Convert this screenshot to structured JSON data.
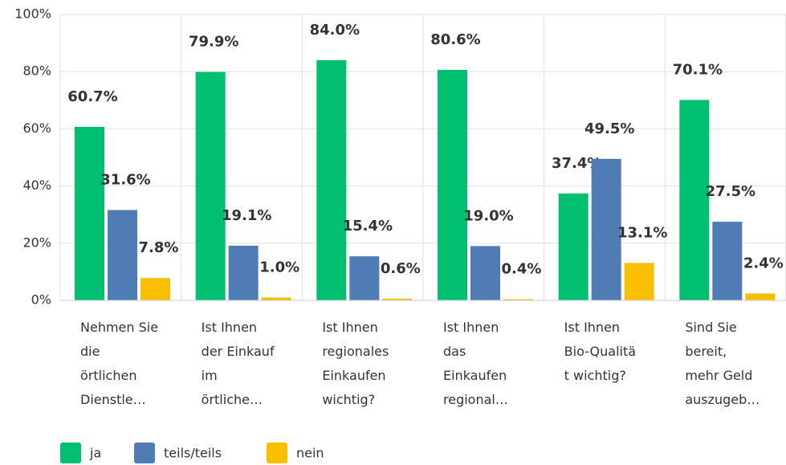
{
  "chart_data": {
    "type": "bar",
    "categories": [
      "Nehmen Sie\ndie\nörtlichen\nDienstle…",
      "Ist Ihnen\nder Einkauf\nim\nörtliche…",
      "Ist Ihnen\nregionales\nEinkaufen\nwichtig?",
      "Ist Ihnen\ndas\nEinkaufen\nregional…",
      "Ist Ihnen\nBio-Qualitä\nt wichtig?",
      "Sind Sie\nbereit,\nmehr Geld\nauszugeb…"
    ],
    "series": [
      {
        "name": "ja",
        "color": "#00bf6f",
        "values": [
          60.7,
          79.9,
          84.0,
          80.6,
          37.4,
          70.1
        ],
        "value_labels": [
          "60.7%",
          "79.9%",
          "84.0%",
          "80.6%",
          "37.4%",
          "70.1%"
        ]
      },
      {
        "name": "teils/teils",
        "color": "#507cb6",
        "values": [
          31.6,
          19.1,
          15.4,
          19.0,
          49.5,
          27.5
        ],
        "value_labels": [
          "31.6%",
          "19.1%",
          "15.4%",
          "19.0%",
          "49.5%",
          "27.5%"
        ]
      },
      {
        "name": "nein",
        "color": "#f9be00",
        "values": [
          7.8,
          1.0,
          0.6,
          0.4,
          13.1,
          2.4
        ],
        "value_labels": [
          "7.8%",
          "1.0%",
          "0.6%",
          "0.4%",
          "13.1%",
          "2.4%"
        ]
      }
    ],
    "ylim": [
      0,
      100
    ],
    "yticks": [
      {
        "value": 0,
        "label": "0%"
      },
      {
        "value": 20,
        "label": "20%"
      },
      {
        "value": 40,
        "label": "40%"
      },
      {
        "value": 60,
        "label": "60%"
      },
      {
        "value": 80,
        "label": "80%"
      },
      {
        "value": 100,
        "label": "100%"
      }
    ],
    "grid": true
  }
}
